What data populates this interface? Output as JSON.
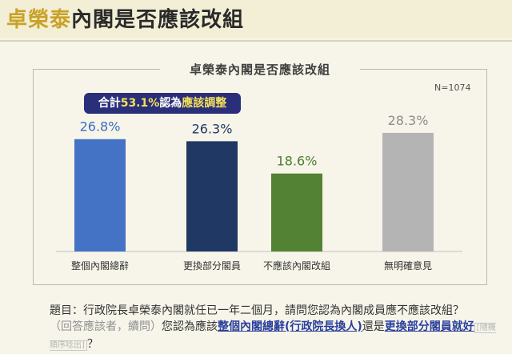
{
  "header": {
    "title_highlight": "卓榮泰",
    "title_rest": "內閣是否應該改組"
  },
  "chart_data": {
    "type": "bar",
    "title": "卓榮泰內閣是否應該改組",
    "sample_note": "N=1074",
    "categories": [
      "整個內閣總辭",
      "更換部分閣員",
      "不應該內閣改組",
      "無明確意見"
    ],
    "values": [
      26.8,
      26.3,
      18.6,
      28.3
    ],
    "value_labels": [
      "26.8%",
      "26.3%",
      "18.6%",
      "28.3%"
    ],
    "colors": [
      "#4472c4",
      "#1f3864",
      "#548235",
      "#b4b4b4"
    ],
    "value_label_colors": [
      "#3b6bc0",
      "#1f3864",
      "#4d7a2f",
      "#8c8c8c"
    ],
    "ylim": [
      0,
      30
    ],
    "annotation": {
      "prefix": "合計",
      "percent": "53.1%",
      "middle": "認為",
      "emphasis": "應該調整"
    }
  },
  "question": {
    "prefix": "題目：行政院長卓榮泰內閣就任已一年二個月，請問您認為內閣成員應不應該改組？",
    "followup_condition": "（回答應該者，續問）",
    "followup_text": "您認為應該",
    "option1": "整個內閣總辭(行政院長換人)",
    "connector": "還是",
    "option2": "更換部分閣員就好",
    "order_note": "[隨機順序唸出]",
    "end": "？"
  }
}
